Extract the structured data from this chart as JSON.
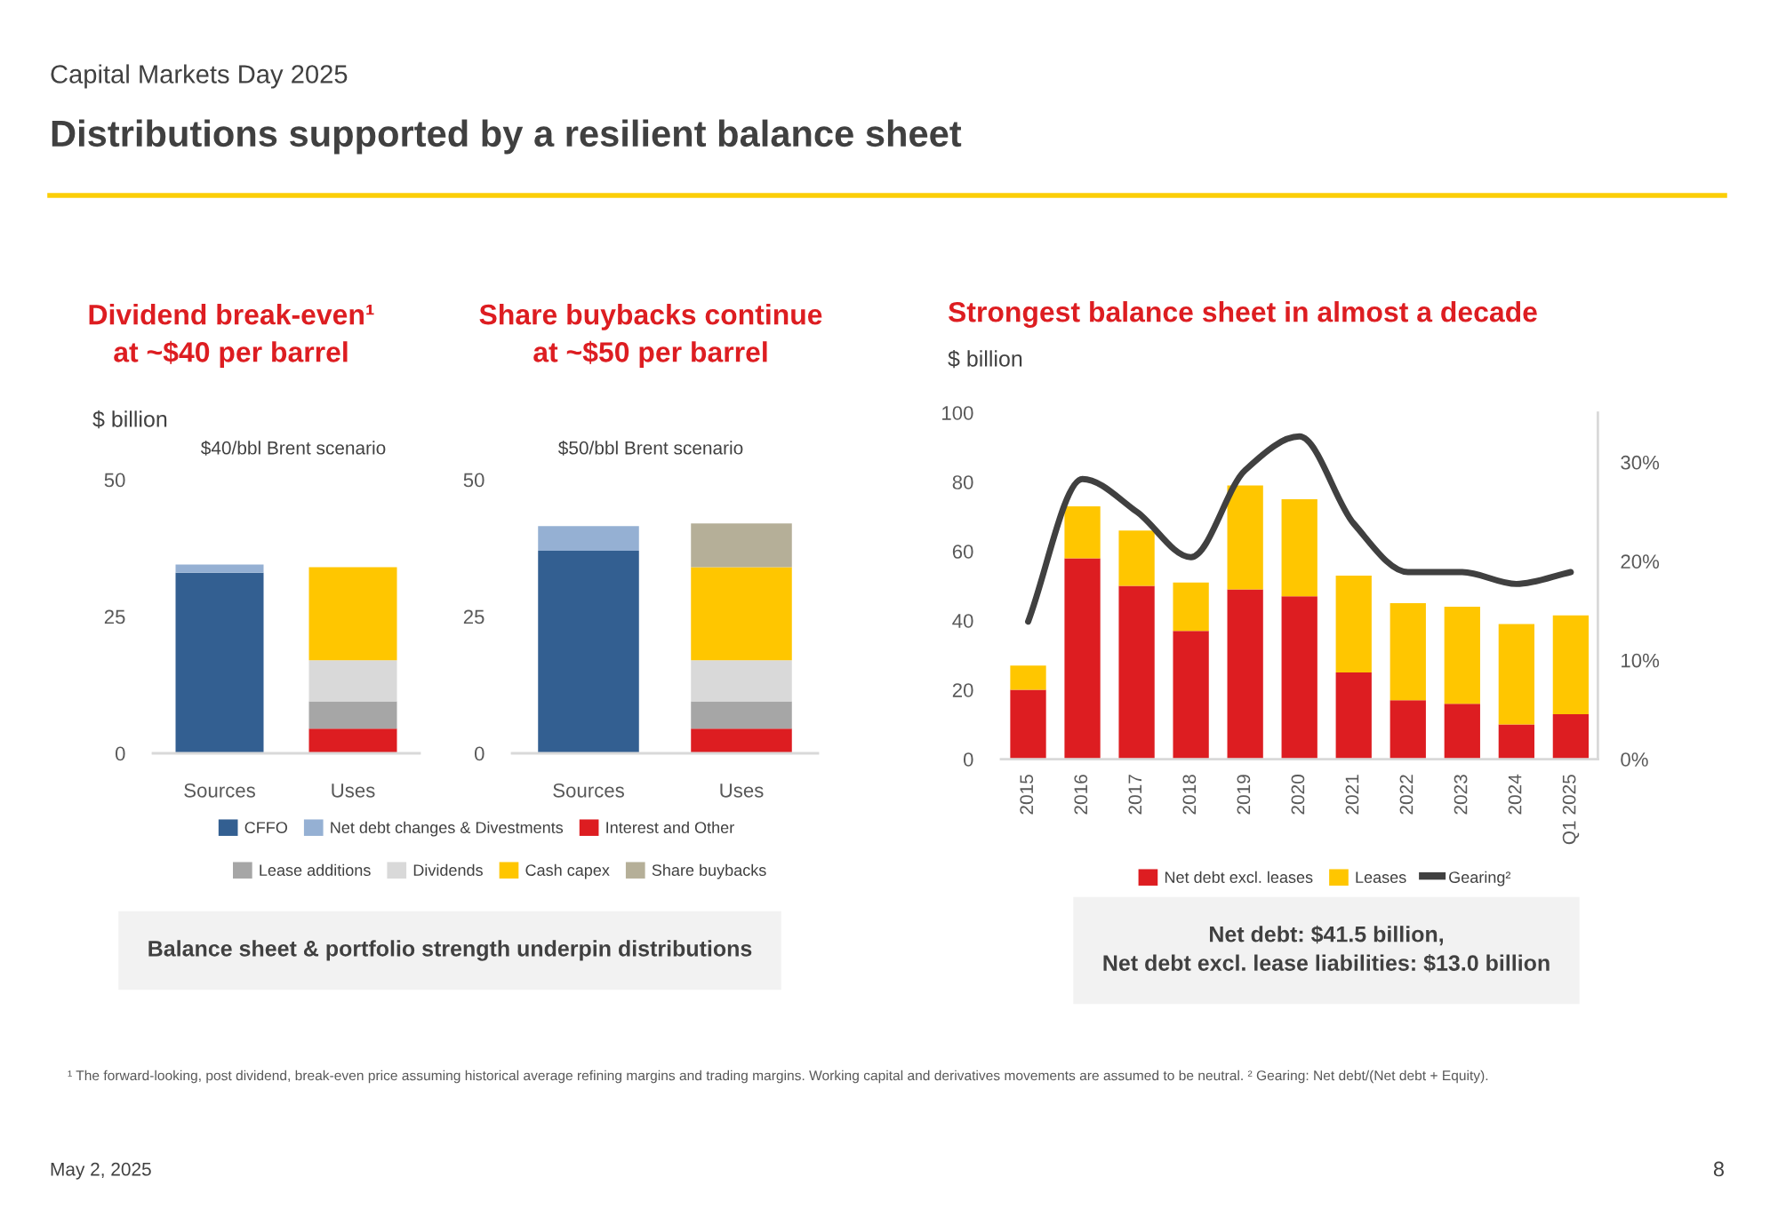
{
  "chart_data": [
    {
      "type": "bar",
      "title": "Dividend break-even¹\nat ~$40 per barrel",
      "subtitle": "$40/bbl Brent scenario",
      "ylabel": "$ billion",
      "stacked": true,
      "legend": "bottom",
      "categories": [
        "Sources",
        "Uses"
      ],
      "ylim": [
        0,
        50
      ],
      "yticks": [
        0,
        25,
        50
      ],
      "series": [
        {
          "name": "CFFO",
          "color": "#335f91",
          "values": [
            33,
            null
          ]
        },
        {
          "name": "Net debt changes & Divestments",
          "color": "#95b0d3",
          "values": [
            1.5,
            null
          ]
        },
        {
          "name": "Interest and Other",
          "color": "#dd1d21",
          "values": [
            null,
            4.5
          ]
        },
        {
          "name": "Lease additions",
          "color": "#a6a6a6",
          "values": [
            null,
            5
          ]
        },
        {
          "name": "Dividends",
          "color": "#d9d9d9",
          "values": [
            null,
            7.5
          ]
        },
        {
          "name": "Cash capex",
          "color": "#ffc600",
          "values": [
            null,
            17
          ]
        }
      ],
      "annotations": [
        "Capital Markets Day 2025",
        "Distributions supported by a resilient balance sheet",
        "¹ The forward-looking, post dividend, break-even price assuming historical average refining margins and trading margins. Working capital and derivatives movements are assumed to be neutral. ² Gearing: Net debt/(Net debt + Equity).",
        "May 2, 2025",
        "8"
      ]
    },
    {
      "type": "bar",
      "title": "Share buybacks continue\nat ~$50 per barrel",
      "subtitle": "$50/bbl Brent scenario",
      "stacked": true,
      "legend": "bottom",
      "categories": [
        "Sources",
        "Uses"
      ],
      "ylim": [
        0,
        50
      ],
      "yticks": [
        0,
        25,
        50
      ],
      "series": [
        {
          "color": "#335f91",
          "values": [
            37,
            null
          ]
        },
        {
          "color": "#95b0d3",
          "values": [
            4.5,
            null
          ]
        },
        {
          "color": "#dd1d21",
          "values": [
            null,
            4.5
          ]
        },
        {
          "color": "#a6a6a6",
          "values": [
            null,
            5
          ]
        },
        {
          "color": "#d9d9d9",
          "values": [
            null,
            7.5
          ]
        },
        {
          "color": "#ffc600",
          "values": [
            null,
            17
          ]
        },
        {
          "name": "Share buybacks",
          "color": "#b5af98",
          "values": [
            null,
            8
          ]
        }
      ],
      "annotations": [
        "Balance sheet & portfolio strength underpin distributions"
      ]
    },
    {
      "type": "bar",
      "title": "Strongest balance sheet in almost a decade",
      "ylabel": "$ billion",
      "stacked": true,
      "legend": "bottom",
      "categories": [
        "2015",
        "2016",
        "2017",
        "2018",
        "2019",
        "2020",
        "2021",
        "2022",
        "2023",
        "2024",
        "Q1 2025"
      ],
      "ylim": [
        0,
        100
      ],
      "yticks": [
        0,
        20,
        40,
        60,
        80,
        100
      ],
      "y2lim": [
        0,
        35
      ],
      "y2ticks": [
        {
          "value": 0,
          "label": "0%"
        },
        {
          "value": 10,
          "label": "10%"
        },
        {
          "value": 20,
          "label": "20%"
        },
        {
          "value": 30,
          "label": "30%"
        }
      ],
      "series": [
        {
          "name": "Net debt excl. leases",
          "color": "#dd1d21",
          "values": [
            20,
            58,
            50,
            37,
            49,
            47,
            25,
            17,
            16,
            10,
            13.0
          ]
        },
        {
          "name": "Leases",
          "color": "#ffc600",
          "values": [
            7,
            15,
            16,
            14,
            30,
            28,
            28,
            28,
            28,
            29,
            28.5
          ]
        },
        {
          "name": "Gearing²",
          "type": "line",
          "axis": "y2",
          "color": "#404040",
          "values": [
            13.9,
            28.3,
            25.0,
            20.4,
            29.2,
            32.6,
            23.8,
            18.9,
            18.9,
            17.7,
            18.9
          ]
        }
      ],
      "annotations": [
        "Net debt: $41.5 billion,\nNet debt excl. lease liabilities: $13.0 billion"
      ]
    }
  ]
}
